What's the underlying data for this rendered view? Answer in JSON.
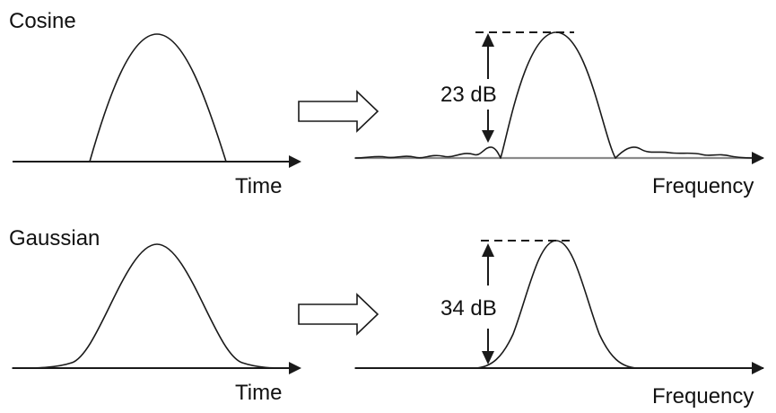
{
  "rows": [
    {
      "window_label": "Cosine",
      "time_axis_label": "Time",
      "frequency_axis_label": "Frequency",
      "sidelobe_suppression_label": "23 dB"
    },
    {
      "window_label": "Gaussian",
      "time_axis_label": "Time",
      "frequency_axis_label": "Frequency",
      "sidelobe_suppression_label": "34 dB"
    }
  ],
  "colors": {
    "ink": "#1a1a1a",
    "spectrum_baseline": "#8a8a8a",
    "background": "#ffffff"
  }
}
